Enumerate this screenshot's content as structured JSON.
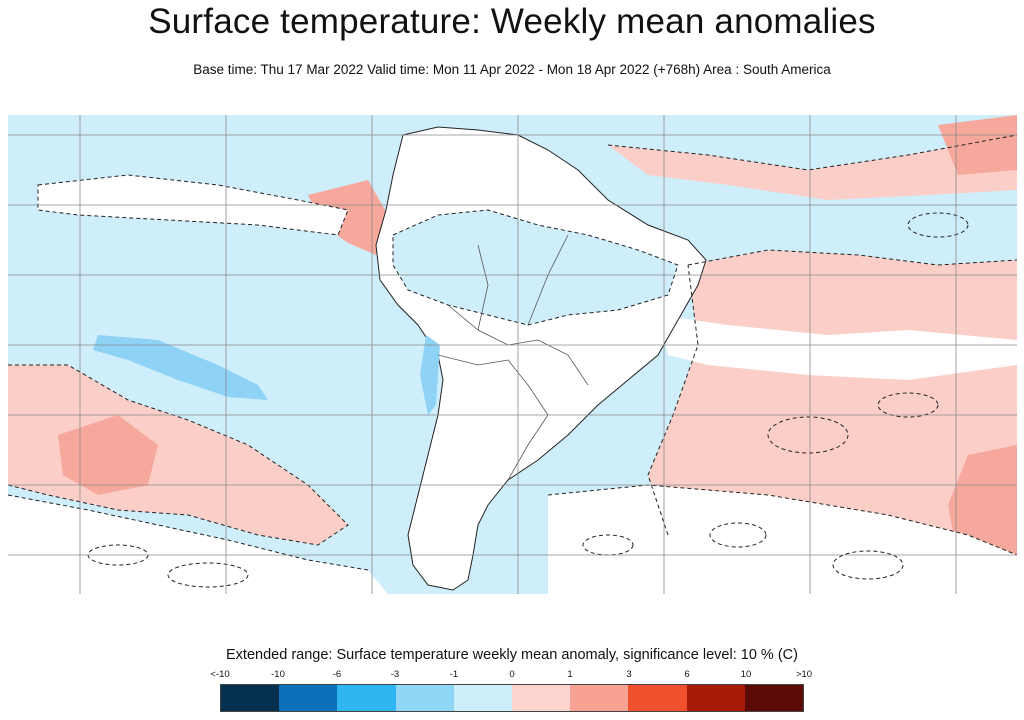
{
  "title": "Surface temperature: Weekly mean anomalies",
  "subtitle": "Base time: Thu 17 Mar 2022 Valid time: Mon 11 Apr 2022 - Mon 18 Apr 2022 (+768h) Area : South America",
  "legend": {
    "title": "Extended range: Surface temperature weekly mean anomaly, significance level: 10 % (C)",
    "tick_labels": [
      "<-10",
      "-10",
      "-6",
      "-3",
      "-1",
      "0",
      "1",
      "3",
      "6",
      "10",
      ">10"
    ],
    "colors": [
      "#06304f",
      "#0b70b8",
      "#2fb6f1",
      "#90d6f6",
      "#cdeefb",
      "#fdd3ce",
      "#f8a294",
      "#f0502e",
      "#a61c08",
      "#5a0b05"
    ]
  },
  "map": {
    "area": "South America",
    "variable": "Surface temperature weekly mean anomaly",
    "units": "C",
    "significance_contour": "dashed",
    "gridlines": true,
    "background_color": "#cfeefc",
    "insignificant_color": "#ffffff",
    "warm_color": "#fbcfc7",
    "warm_strong_color": "#f5a89b",
    "cool_strong_color": "#8ed2f5"
  }
}
